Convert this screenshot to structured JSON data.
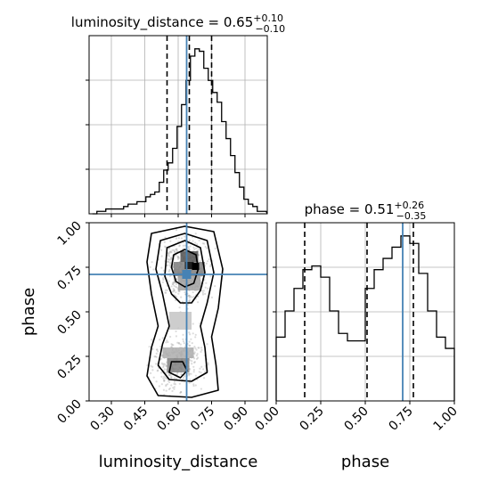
{
  "chart_data": [
    {
      "panel": "luminosity_distance-marginal",
      "type": "histogram",
      "title_main": "luminosity_distance = 0.65",
      "title_sup": "+0.10",
      "title_sub": "−0.10",
      "x": [
        0.225,
        0.245,
        0.265,
        0.285,
        0.305,
        0.325,
        0.345,
        0.365,
        0.385,
        0.405,
        0.425,
        0.445,
        0.465,
        0.485,
        0.505,
        0.525,
        0.545,
        0.565,
        0.585,
        0.605,
        0.625,
        0.645,
        0.665,
        0.685,
        0.705,
        0.725,
        0.745,
        0.765,
        0.785,
        0.805,
        0.825,
        0.845,
        0.865,
        0.885,
        0.905,
        0.925,
        0.945,
        0.965,
        0.985
      ],
      "values": [
        0,
        1,
        1,
        2,
        2,
        2,
        2,
        3,
        4,
        4,
        5,
        5,
        7,
        8,
        9,
        13,
        18,
        21,
        27,
        36,
        45,
        55,
        65,
        68,
        67,
        60,
        55,
        50,
        46,
        38,
        31,
        24,
        17,
        11,
        6,
        4,
        3,
        1,
        1
      ],
      "xlim": [
        0.2,
        1.0
      ],
      "x_ticks": [
        0.3,
        0.45,
        0.6,
        0.75,
        0.9
      ],
      "quantile_lines": [
        0.55,
        0.65,
        0.75
      ],
      "truth_line": 0.638,
      "grid": true
    },
    {
      "panel": "phase-marginal",
      "type": "histogram",
      "title_main": "phase = 0.51",
      "title_sup": "+0.26",
      "title_sub": "−0.35",
      "x": [
        0.025,
        0.075,
        0.125,
        0.175,
        0.225,
        0.275,
        0.325,
        0.375,
        0.425,
        0.475,
        0.525,
        0.575,
        0.625,
        0.675,
        0.725,
        0.775,
        0.825,
        0.875,
        0.925,
        0.975
      ],
      "values": [
        17,
        24,
        30,
        35,
        36,
        33,
        24,
        18,
        16,
        16,
        30,
        35,
        38,
        41,
        44,
        42,
        34,
        24,
        17,
        14
      ],
      "xlim": [
        0.0,
        1.0
      ],
      "x_ticks": [
        0.0,
        0.25,
        0.5,
        0.75,
        1.0
      ],
      "x_tick_labels": [
        "0.00",
        "0.25",
        "0.50",
        "0.75",
        "1.00"
      ],
      "quantile_lines": [
        0.16,
        0.51,
        0.77
      ],
      "truth_line": 0.71,
      "grid": true,
      "xlabel": "phase"
    },
    {
      "panel": "joint-2d",
      "type": "scatter",
      "xlabel": "luminosity_distance",
      "ylabel": "phase",
      "xlim": [
        0.2,
        1.0
      ],
      "ylim": [
        0.0,
        1.0
      ],
      "x_ticks": [
        0.3,
        0.45,
        0.6,
        0.75,
        0.9
      ],
      "x_tick_labels": [
        "0.30",
        "0.45",
        "0.60",
        "0.75",
        "0.90"
      ],
      "y_ticks": [
        0.0,
        0.25,
        0.5,
        0.75,
        1.0
      ],
      "y_tick_labels": [
        "0.00",
        "0.25",
        "0.50",
        "0.75",
        "1.00"
      ],
      "truth_point": [
        0.638,
        0.71
      ],
      "density_cells": [
        {
          "x": 0.61,
          "y": 0.78,
          "w": 0.08,
          "h": 0.06,
          "level": 0.65
        },
        {
          "x": 0.58,
          "y": 0.7,
          "w": 0.14,
          "h": 0.08,
          "level": 0.45
        },
        {
          "x": 0.6,
          "y": 0.62,
          "w": 0.1,
          "h": 0.08,
          "level": 0.3
        },
        {
          "x": 0.63,
          "y": 0.74,
          "w": 0.04,
          "h": 0.04,
          "level": 0.95
        },
        {
          "x": 0.55,
          "y": 0.16,
          "w": 0.1,
          "h": 0.08,
          "level": 0.45
        },
        {
          "x": 0.53,
          "y": 0.24,
          "w": 0.14,
          "h": 0.06,
          "level": 0.25
        },
        {
          "x": 0.56,
          "y": 0.4,
          "w": 0.1,
          "h": 0.1,
          "level": 0.15
        }
      ],
      "contours": [
        [
          [
            0.58,
            0.82
          ],
          [
            0.63,
            0.85
          ],
          [
            0.68,
            0.82
          ],
          [
            0.69,
            0.74
          ],
          [
            0.67,
            0.66
          ],
          [
            0.63,
            0.64
          ],
          [
            0.59,
            0.67
          ],
          [
            0.57,
            0.75
          ]
        ],
        [
          [
            0.55,
            0.86
          ],
          [
            0.63,
            0.9
          ],
          [
            0.7,
            0.86
          ],
          [
            0.72,
            0.72
          ],
          [
            0.7,
            0.62
          ],
          [
            0.66,
            0.55
          ],
          [
            0.61,
            0.55
          ],
          [
            0.57,
            0.6
          ],
          [
            0.54,
            0.7
          ]
        ],
        [
          [
            0.52,
            0.9
          ],
          [
            0.63,
            0.94
          ],
          [
            0.73,
            0.9
          ],
          [
            0.76,
            0.72
          ],
          [
            0.73,
            0.55
          ],
          [
            0.7,
            0.42
          ],
          [
            0.72,
            0.3
          ],
          [
            0.73,
            0.16
          ],
          [
            0.66,
            0.11
          ],
          [
            0.56,
            0.12
          ],
          [
            0.51,
            0.2
          ],
          [
            0.53,
            0.32
          ],
          [
            0.56,
            0.42
          ],
          [
            0.53,
            0.6
          ],
          [
            0.5,
            0.74
          ]
        ],
        [
          [
            0.48,
            0.94
          ],
          [
            0.63,
            0.98
          ],
          [
            0.76,
            0.95
          ],
          [
            0.8,
            0.74
          ],
          [
            0.78,
            0.52
          ],
          [
            0.75,
            0.36
          ],
          [
            0.77,
            0.2
          ],
          [
            0.78,
            0.06
          ],
          [
            0.66,
            0.02
          ],
          [
            0.51,
            0.03
          ],
          [
            0.46,
            0.14
          ],
          [
            0.48,
            0.3
          ],
          [
            0.51,
            0.42
          ],
          [
            0.48,
            0.6
          ],
          [
            0.46,
            0.78
          ]
        ],
        [
          [
            0.56,
            0.16
          ],
          [
            0.61,
            0.13
          ],
          [
            0.64,
            0.17
          ],
          [
            0.62,
            0.22
          ],
          [
            0.57,
            0.22
          ]
        ]
      ]
    }
  ]
}
